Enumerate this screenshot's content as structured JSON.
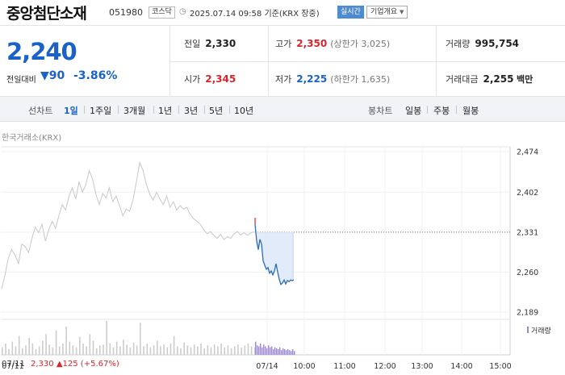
{
  "header": {
    "name": "중앙첨단소재",
    "code": "051980",
    "market": "코스닥",
    "datetime": "2025.07.14 09:58",
    "basis": "기준(KRX 장중)",
    "live_label": "실시간",
    "company_info_label": "기업개요"
  },
  "quote": {
    "price": "2,240",
    "change_label": "전일대비",
    "change_amount": "90",
    "change_percent": "-3.86%",
    "prev_close_label": "전일",
    "prev_close": "2,330",
    "high_label": "고가",
    "high": "2,350",
    "upper_limit_text": "(상한가 3,025)",
    "volume_label": "거래량",
    "volume": "995,754",
    "open_label": "시가",
    "open": "2,345",
    "low_label": "저가",
    "low": "2,225",
    "lower_limit_text": "(하한가 1,635)",
    "amount_label": "거래대금",
    "amount": "2,255",
    "amount_unit": "백만"
  },
  "tabs": {
    "line_group": "선차트",
    "line_tabs": [
      "1일",
      "1주일",
      "3개월",
      "1년",
      "3년",
      "5년",
      "10년"
    ],
    "candle_group": "봉차트",
    "candle_tabs": [
      "일봉",
      "주봉",
      "월봉"
    ],
    "active": "1일"
  },
  "chart": {
    "source": "한국거래소(KRX)",
    "volume_legend": "거래량",
    "footer_date": "07/11",
    "footer_price": "2,330",
    "footer_change": "▲125 (+5.67%)",
    "colors": {
      "prev_day": "#c8c8c8",
      "today": "#2a6cb8",
      "fill": "#dce7f8",
      "up": "#d8252d",
      "volume": "#9b8bc4"
    }
  },
  "chart_data": {
    "type": "line",
    "y_ticks": [
      "2,474",
      "2,402",
      "2,331",
      "2,260",
      "2,189"
    ],
    "y_range": [
      2189,
      2474
    ],
    "reference_price": 2331,
    "x_ticks": [
      "07/11",
      "07/14",
      "10:00",
      "11:00",
      "12:00",
      "13:00",
      "14:00",
      "15:00"
    ],
    "prev_day_series": [
      2230,
      2255,
      2285,
      2300,
      2290,
      2275,
      2310,
      2305,
      2295,
      2320,
      2340,
      2330,
      2345,
      2315,
      2335,
      2350,
      2338,
      2360,
      2380,
      2370,
      2395,
      2410,
      2390,
      2420,
      2402,
      2415,
      2440,
      2425,
      2398,
      2380,
      2400,
      2392,
      2410,
      2385,
      2395,
      2378,
      2360,
      2372,
      2368,
      2388,
      2420,
      2455,
      2440,
      2415,
      2398,
      2388,
      2402,
      2390,
      2380,
      2395,
      2375,
      2385,
      2370,
      2378,
      2372,
      2375,
      2362,
      2355,
      2350,
      2345,
      2335,
      2328,
      2332,
      2325,
      2320,
      2327,
      2318,
      2323,
      2320,
      2328,
      2332,
      2326,
      2330,
      2325,
      2330,
      2331
    ],
    "today_series": [
      2345,
      2315,
      2300,
      2318,
      2310,
      2280,
      2272,
      2265,
      2268,
      2258,
      2262,
      2255,
      2262,
      2275,
      2260,
      2247,
      2238,
      2241,
      2246,
      2239,
      2245,
      2243,
      2246,
      2245,
      2246
    ],
    "prev_day_volume": [
      8,
      12,
      6,
      14,
      9,
      20,
      7,
      10,
      18,
      12,
      6,
      9,
      15,
      22,
      11,
      8,
      26,
      9,
      12,
      30,
      14,
      10,
      8,
      19,
      12,
      9,
      22,
      15,
      7,
      10,
      11,
      36,
      12,
      8,
      14,
      9,
      16,
      11,
      8,
      13,
      10,
      34,
      9,
      12,
      8,
      10,
      15,
      9,
      11,
      8,
      12,
      20,
      9,
      7,
      13,
      10,
      8,
      11,
      9,
      12,
      7,
      10,
      8,
      11,
      9,
      12,
      8,
      10,
      7,
      9,
      11,
      8,
      10,
      12,
      9,
      8
    ],
    "today_volume": [
      14,
      10,
      9,
      12,
      8,
      11,
      9,
      7,
      10,
      8,
      9,
      6,
      8,
      7,
      6,
      8,
      5,
      7,
      6,
      5,
      6,
      5,
      4,
      6,
      4
    ]
  }
}
